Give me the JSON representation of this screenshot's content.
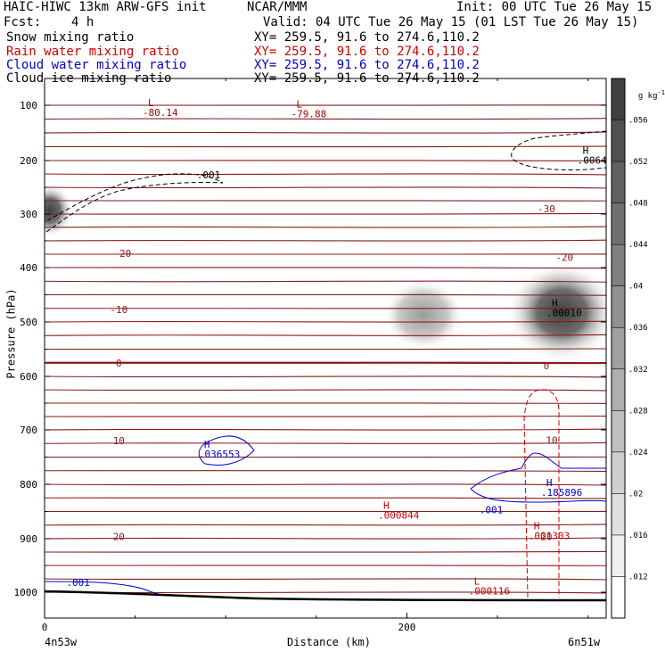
{
  "header": {
    "model": "HAIC-HIWC 13km ARW-GFS init",
    "org": "NCAR/MMM",
    "init": "Init: 00 UTC Tue 26 May 15",
    "fcst_label": "Fcst:",
    "fcst_value": "4 h",
    "valid": "Valid: 04 UTC Tue 26 May 15 (01 LST Tue 26 May 15)"
  },
  "fields": [
    {
      "name": "Snow mixing ratio",
      "xy": "XY= 259.5, 91.6 to 274.6,110.2",
      "color": "#000000"
    },
    {
      "name": "Rain water mixing ratio",
      "xy": "XY= 259.5, 91.6 to 274.6,110.2",
      "color": "#cc0000"
    },
    {
      "name": "Cloud water mixing ratio",
      "xy": "XY= 259.5, 91.6 to 274.6,110.2",
      "color": "#0000cc"
    },
    {
      "name": "Cloud ice mixing ratio",
      "xy": "XY= 259.5, 91.6 to 274.6,110.2",
      "color": "#000000"
    }
  ],
  "chart_data": {
    "type": "heatmap",
    "ylabel": "Pressure (hPa)",
    "xlabel": "Distance (km)",
    "x_start_label": "4n53w",
    "x_end_label": "6n51w",
    "x_ticks": [
      0,
      200
    ],
    "xlim": [
      0,
      310
    ],
    "y_ticks": [
      100,
      200,
      300,
      400,
      500,
      600,
      700,
      800,
      900,
      1000
    ],
    "ylim": [
      1050,
      60
    ],
    "colorbar": {
      "unit": "g kg",
      "unit_exp": "-1",
      "ticks": [
        ".056",
        ".052",
        ".048",
        ".044",
        ".04",
        ".036",
        ".032",
        ".028",
        ".024",
        ".02",
        ".016",
        ".012"
      ]
    },
    "temperature_labels": [
      {
        "text": "-30",
        "x": 277,
        "p": 290
      },
      {
        "text": "-20",
        "x": 43,
        "p": 373
      },
      {
        "text": "-20",
        "x": 287,
        "p": 381
      },
      {
        "text": "-10",
        "x": 41,
        "p": 477
      },
      {
        "text": "0",
        "x": 41,
        "p": 575
      },
      {
        "text": "0",
        "x": 277,
        "p": 580
      },
      {
        "text": "10",
        "x": 41,
        "p": 720
      },
      {
        "text": "10",
        "x": 280,
        "p": 719
      },
      {
        "text": "20",
        "x": 41,
        "p": 896
      },
      {
        "text": "20",
        "x": 277,
        "p": 896
      }
    ],
    "extrema": [
      {
        "mark": "L",
        "value": "-80.14",
        "x": 57,
        "p": 102,
        "color": "#990000"
      },
      {
        "mark": "L",
        "value": "-79.88",
        "x": 139,
        "p": 104,
        "color": "#990000"
      },
      {
        "mark": "H",
        "value": ".0064",
        "x": 297,
        "p": 188,
        "color": "#000000"
      },
      {
        "mark": "H",
        "value": ".00010",
        "x": 280,
        "p": 471,
        "color": "#000000"
      },
      {
        "mark": "H",
        "value": ".036553",
        "x": 88,
        "p": 733,
        "color": "#0000cc"
      },
      {
        "mark": "H",
        "value": ".185896",
        "x": 277,
        "p": 803,
        "color": "#0000cc"
      },
      {
        "mark": "H",
        "value": ".000844",
        "x": 187,
        "p": 845,
        "color": "#cc0000"
      },
      {
        "mark": "H",
        "value": ".001303",
        "x": 270,
        "p": 883,
        "color": "#cc0000"
      },
      {
        "mark": "L",
        "value": ".000116",
        "x": 237,
        "p": 986,
        "color": "#cc0000"
      }
    ],
    "contour_labels": [
      {
        "text": ".001",
        "x": 84,
        "p": 227,
        "color": "#000000"
      },
      {
        "text": ".001",
        "x": 240,
        "p": 847,
        "color": "#0000cc"
      },
      {
        "text": ".001",
        "x": 12,
        "p": 982,
        "color": "#0000cc"
      }
    ]
  }
}
